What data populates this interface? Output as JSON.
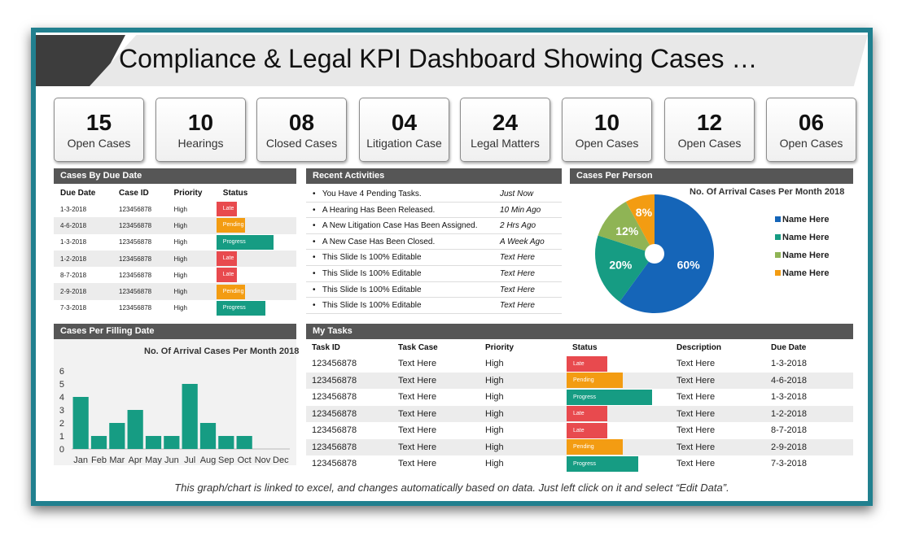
{
  "title": "Compliance & Legal KPI Dashboard Showing Cases …",
  "kpis": [
    {
      "value": "15",
      "label": "Open Cases"
    },
    {
      "value": "10",
      "label": "Hearings"
    },
    {
      "value": "08",
      "label": "Closed Cases"
    },
    {
      "value": "04",
      "label": "Litigation Case"
    },
    {
      "value": "24",
      "label": "Legal Matters"
    },
    {
      "value": "10",
      "label": "Open Cases"
    },
    {
      "value": "12",
      "label": "Open Cases"
    },
    {
      "value": "06",
      "label": "Open Cases"
    }
  ],
  "due_panel": {
    "title": "Cases By Due Date",
    "columns": [
      "Due Date",
      "Case ID",
      "Priority",
      "Status"
    ],
    "rows": [
      {
        "due": "1-3-2018",
        "id": "123456878",
        "priority": "High",
        "status": "Late",
        "level": "late",
        "fill": 0.35
      },
      {
        "due": "4-6-2018",
        "id": "123456878",
        "priority": "High",
        "status": "Pending",
        "level": "pending",
        "fill": 0.5
      },
      {
        "due": "1-3-2018",
        "id": "123456878",
        "priority": "High",
        "status": "Progress",
        "level": "progress",
        "fill": 1.0
      },
      {
        "due": "1-2-2018",
        "id": "123456878",
        "priority": "High",
        "status": "Late",
        "level": "late",
        "fill": 0.35
      },
      {
        "due": "8-7-2018",
        "id": "123456878",
        "priority": "High",
        "status": "Late",
        "level": "late",
        "fill": 0.35
      },
      {
        "due": "2-9-2018",
        "id": "123456878",
        "priority": "High",
        "status": "Pending",
        "level": "pending",
        "fill": 0.5
      },
      {
        "due": "7-3-2018",
        "id": "123456878",
        "priority": "High",
        "status": "Progress",
        "level": "progress",
        "fill": 0.85
      }
    ]
  },
  "activities": {
    "title": "Recent Activities",
    "items": [
      {
        "text": "You Have 4 Pending Tasks.",
        "time": "Just Now"
      },
      {
        "text": "A Hearing Has Been Released.",
        "time": "10 Min Ago"
      },
      {
        "text": "A New Litigation Case Has Been Assigned.",
        "time": "2 Hrs Ago"
      },
      {
        "text": "A New Case Has Been Closed.",
        "time": "A Week Ago"
      },
      {
        "text": "This Slide Is 100% Editable",
        "time": "Text Here"
      },
      {
        "text": "This Slide Is 100% Editable",
        "time": "Text Here"
      },
      {
        "text": "This Slide Is 100% Editable",
        "time": "Text Here"
      },
      {
        "text": "This Slide Is 100% Editable",
        "time": "Text Here"
      }
    ]
  },
  "person_panel": {
    "title": "Cases Per Person",
    "chart_title": "No. Of Arrival Cases Per Month 2018",
    "slices": [
      {
        "name": "Name Here",
        "value": 60,
        "label": "60%",
        "color": "#1565b8"
      },
      {
        "name": "Name Here",
        "value": 20,
        "label": "20%",
        "color": "#169c83"
      },
      {
        "name": "Name Here",
        "value": 12,
        "label": "12%",
        "color": "#8fb455"
      },
      {
        "name": "Name Here",
        "value": 8,
        "label": "8%",
        "color": "#f39c12"
      }
    ]
  },
  "filling_panel": {
    "title": "Cases Per Filling Date"
  },
  "chart_data": {
    "type": "bar",
    "title": "No. Of Arrival Cases Per Month 2018",
    "categories": [
      "Jan",
      "Feb",
      "Mar",
      "Apr",
      "May",
      "Jun",
      "Jul",
      "Aug",
      "Sep",
      "Oct",
      "Nov",
      "Dec"
    ],
    "values": [
      4,
      1,
      2,
      3,
      1,
      1,
      5,
      2,
      1,
      1,
      0,
      0
    ],
    "ylim": [
      0,
      6
    ],
    "yticks": [
      "0",
      "1",
      "2",
      "3",
      "4",
      "5",
      "6"
    ],
    "color": "#169c83"
  },
  "tasks": {
    "title": "My Tasks",
    "columns": [
      "Task ID",
      "Task Case",
      "Priority",
      "Status",
      "Description",
      "Due Date"
    ],
    "rows": [
      {
        "id": "123456878",
        "case": "Text Here",
        "priority": "High",
        "status": "Late",
        "level": "late",
        "fill": 0.4,
        "desc": "Text Here",
        "due": "1-3-2018"
      },
      {
        "id": "123456878",
        "case": "Text Here",
        "priority": "High",
        "status": "Pending",
        "level": "pending",
        "fill": 0.55,
        "desc": "Text Here",
        "due": "4-6-2018"
      },
      {
        "id": "123456878",
        "case": "Text Here",
        "priority": "High",
        "status": "Progress",
        "level": "progress",
        "fill": 0.83,
        "desc": "Text Here",
        "due": "1-3-2018"
      },
      {
        "id": "123456878",
        "case": "Text Here",
        "priority": "High",
        "status": "Late",
        "level": "late",
        "fill": 0.4,
        "desc": "Text Here",
        "due": "1-2-2018"
      },
      {
        "id": "123456878",
        "case": "Text Here",
        "priority": "High",
        "status": "Late",
        "level": "late",
        "fill": 0.4,
        "desc": "Text Here",
        "due": "8-7-2018"
      },
      {
        "id": "123456878",
        "case": "Text Here",
        "priority": "High",
        "status": "Pending",
        "level": "pending",
        "fill": 0.55,
        "desc": "Text Here",
        "due": "2-9-2018"
      },
      {
        "id": "123456878",
        "case": "Text Here",
        "priority": "High",
        "status": "Progress",
        "level": "progress",
        "fill": 0.7,
        "desc": "Text Here",
        "due": "7-3-2018"
      }
    ]
  },
  "footer": "This graph/chart is linked to excel, and changes automatically based on data. Just left click on it and select “Edit Data”."
}
